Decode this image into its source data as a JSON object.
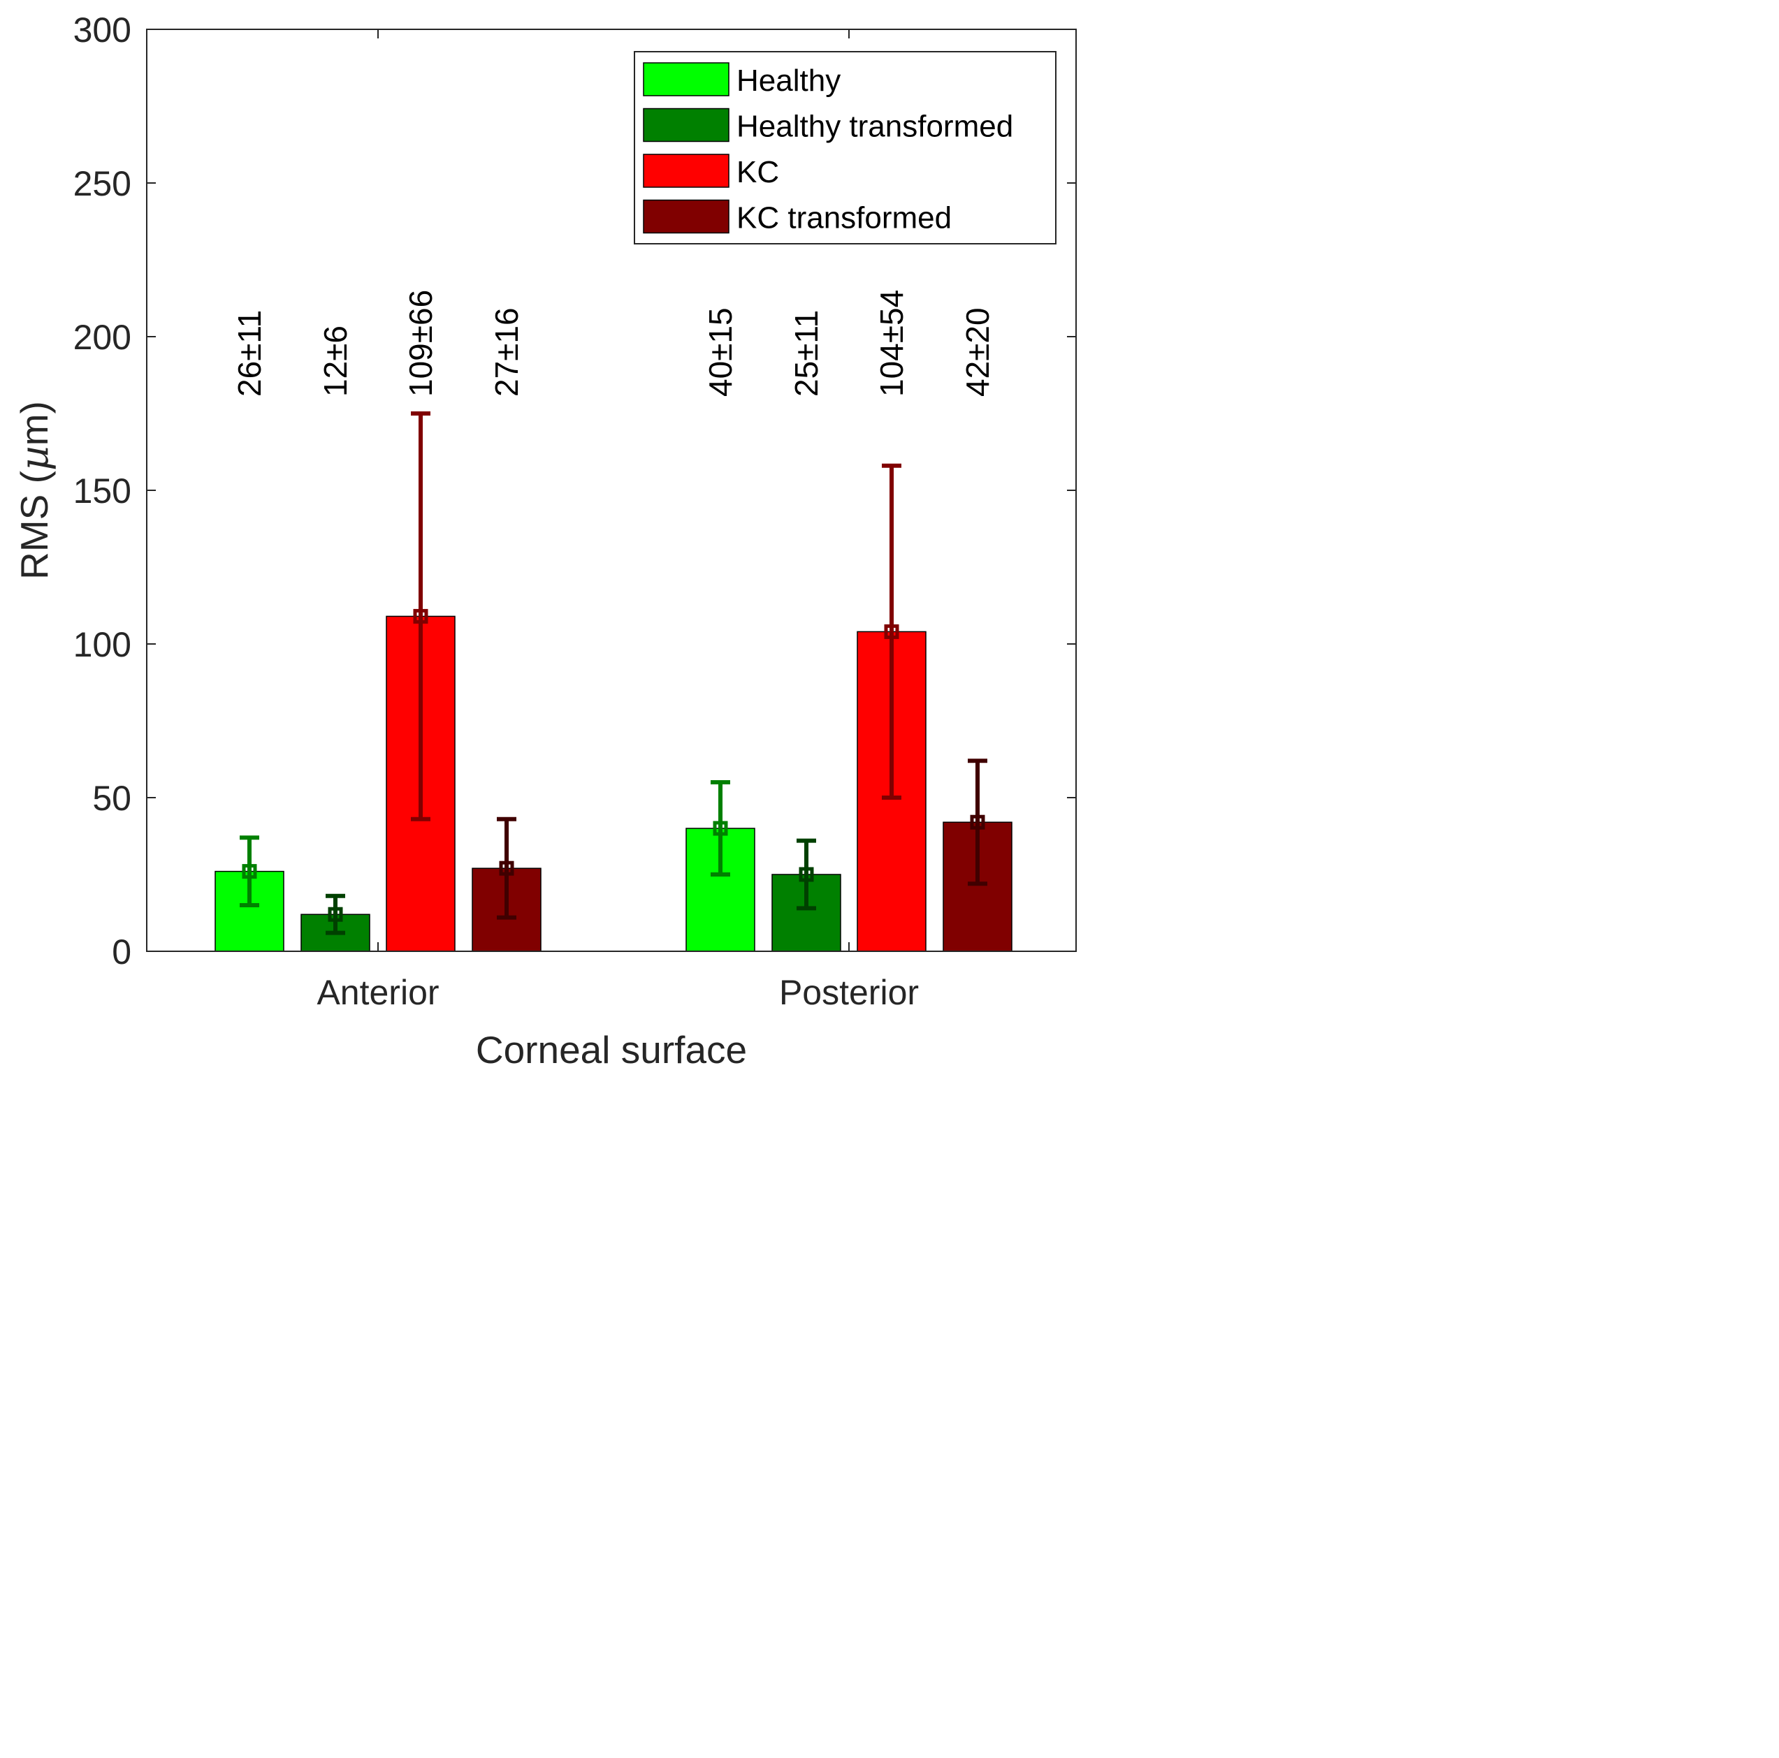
{
  "chart_data": {
    "type": "bar",
    "title": "",
    "xlabel": "Corneal surface",
    "ylabel_text": "RMS (",
    "ylabel_mu": "µ",
    "ylabel_unit": "m)",
    "categories": [
      "Anterior",
      "Posterior"
    ],
    "ylim": [
      0,
      300
    ],
    "yticks": [
      "0",
      "50",
      "100",
      "150",
      "200",
      "250",
      "300"
    ],
    "grid": false,
    "legend_position": "top-right",
    "series": [
      {
        "name": "Healthy",
        "color": "#00ff00",
        "errcolor": "#008000",
        "values": [
          26,
          40
        ],
        "errors": [
          11,
          15
        ],
        "labels": [
          "26±11",
          "40±15"
        ]
      },
      {
        "name": "Healthy transformed",
        "color": "#008000",
        "errcolor": "#004000",
        "values": [
          12,
          25
        ],
        "errors": [
          6,
          11
        ],
        "labels": [
          "12±6",
          "25±11"
        ]
      },
      {
        "name": "KC",
        "color": "#ff0000",
        "errcolor": "#800000",
        "values": [
          109,
          104
        ],
        "errors": [
          66,
          54
        ],
        "labels": [
          "109±66",
          "104±54"
        ]
      },
      {
        "name": "KC transformed",
        "color": "#800000",
        "errcolor": "#400000",
        "values": [
          27,
          42
        ],
        "errors": [
          16,
          20
        ],
        "labels": [
          "27±16",
          "42±20"
        ]
      }
    ]
  }
}
